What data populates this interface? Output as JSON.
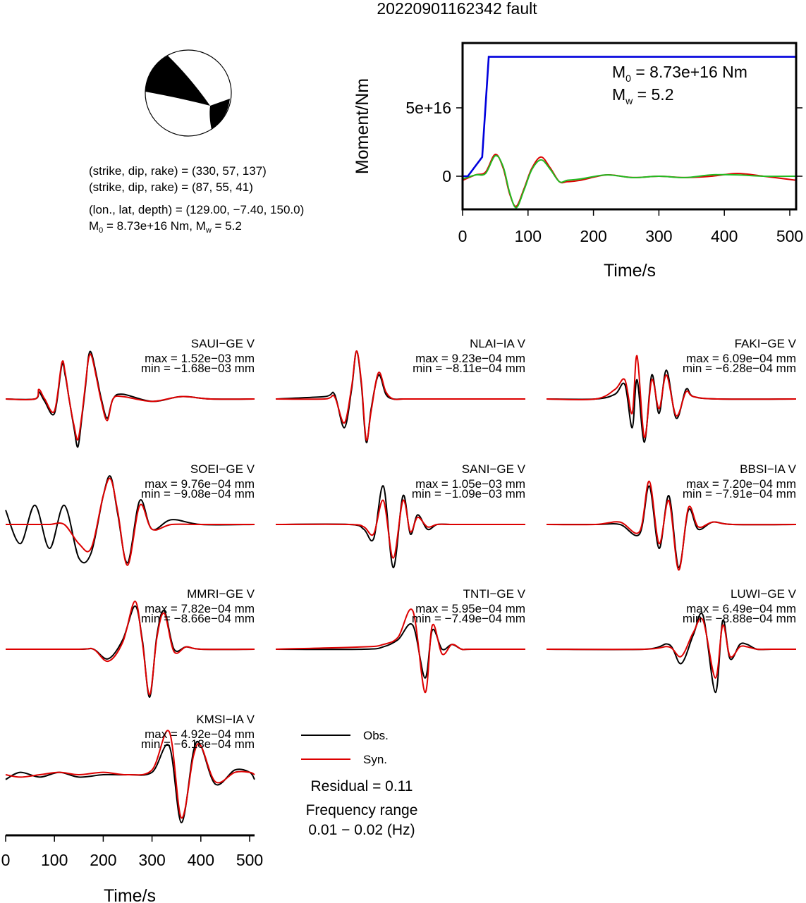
{
  "title": "20220901162342 fault",
  "beachball": {
    "plane1": "(strike, dip, rake) = (330, 57, 137)",
    "plane2": "(strike, dip, rake) = (87, 55, 41)",
    "location": "(lon., lat, depth) = (129.00, −7.40, 150.0)",
    "moment_main": "M",
    "moment_sub": "0",
    "moment_rest": " = 8.73e+16 Nm, M",
    "mag_sub": "w",
    "mag_rest": " = 5.2"
  },
  "stf": {
    "ylabel": "Moment/Nm",
    "xlabel": "Time/s",
    "m0_main": "M",
    "m0_sub": "0",
    "m0_rest": " = 8.73e+16 Nm",
    "mw_main": "M",
    "mw_sub": "w",
    "mw_rest": " = 5.2"
  },
  "waveform_xlabel": "Time/s",
  "legend": {
    "obs": "Obs.",
    "syn": "Syn."
  },
  "residual": "Residual = 0.11",
  "freq_label": "Frequency range",
  "freq_range": "0.01 − 0.02 (Hz)",
  "colors": {
    "obs": "#000000",
    "syn": "#dd0000",
    "moment": "#0000dd",
    "stf_syn": "#22bb22"
  },
  "chart_data": [
    {
      "type": "line",
      "id": "source-time-function",
      "xlabel": "Time/s",
      "ylabel": "Moment/Nm",
      "xlim": [
        0,
        510
      ],
      "ylim": [
        -2.5e+16,
        9.3e+16
      ],
      "xticks": [
        0,
        100,
        200,
        300,
        400,
        500
      ],
      "yticks": [
        0,
        5e+16
      ],
      "ytick_labels": [
        "0",
        "5e+16"
      ],
      "series": [
        {
          "color": "#0000dd",
          "x": [
            0,
            8,
            30,
            40,
            510
          ],
          "y": [
            0,
            0,
            1.4e+16,
            8.73e+16,
            8.73e+16
          ]
        },
        {
          "color": "#22bb22",
          "x": [
            0,
            20,
            35,
            50,
            62,
            72,
            82,
            94,
            106,
            120,
            134,
            148,
            160,
            180,
            220,
            260,
            300,
            340,
            380,
            420,
            460,
            510
          ],
          "y": [
            -2000000000000000.0,
            1000000000000000.0,
            2000000000000000.0,
            1.5e+16,
            7000000000000000.0,
            -1.2e+16,
            -2.3e+16,
            -1e+16,
            5000000000000000.0,
            1.2e+16,
            5000000000000000.0,
            -4000000000000000.0,
            -3000000000000000.0,
            -2000000000000000.0,
            1000000000000000.0,
            -1000000000000000.0,
            0.0,
            -1000000000000000.0,
            1000000000000000.0,
            1000000000000000.0,
            0.0,
            0.0
          ]
        },
        {
          "color": "#dd0000",
          "x": [
            0,
            20,
            35,
            50,
            62,
            72,
            82,
            94,
            106,
            120,
            134,
            148,
            160,
            180,
            220,
            260,
            300,
            340,
            380,
            420,
            460,
            510
          ],
          "y": [
            -3000000000000000.0,
            1000000000000000.0,
            3000000000000000.0,
            1.6e+16,
            6000000000000000.0,
            -1.3e+16,
            -2.2e+16,
            -9000000000000000.0,
            6000000000000000.0,
            1.4e+16,
            6000000000000000.0,
            -4000000000000000.0,
            -4000000000000000.0,
            -3000000000000000.0,
            1000000000000000.0,
            -1000000000000000.0,
            0.0,
            -1000000000000000.0,
            0.0,
            2000000000000000.0,
            0.0,
            -3000000000000000.0
          ]
        }
      ]
    },
    {
      "type": "line",
      "id": "waveform-fits",
      "xlabel": "Time/s",
      "xlim": [
        0,
        510
      ],
      "xticks": [
        0,
        100,
        200,
        300,
        400,
        500
      ],
      "stations": [
        {
          "label": "SAUI−GE V",
          "max": "max = 1.52e−03 mm",
          "min": "min = −1.68e−03 mm",
          "obs": {
            "x": [
              0,
              60,
              68,
              80,
              100,
              115,
              122,
              130,
              140,
              148,
              156,
              164,
              170,
              176,
              186,
              196,
              208,
              220,
              240,
              300,
              360,
              420,
              510
            ],
            "y": [
              0,
              0,
              0.15,
              -0.05,
              -0.3,
              0.7,
              0.5,
              0,
              -0.6,
              -1.0,
              -0.4,
              0.3,
              0.9,
              0.95,
              0.5,
              0,
              -0.4,
              0,
              0.1,
              -0.05,
              0.05,
              0,
              0
            ]
          },
          "syn": {
            "x": [
              0,
              60,
              68,
              80,
              100,
              115,
              122,
              130,
              140,
              148,
              156,
              164,
              170,
              176,
              186,
              196,
              208,
              220,
              240,
              300,
              360,
              420,
              510
            ],
            "y": [
              0,
              0,
              0.2,
              0,
              -0.25,
              0.75,
              0.55,
              0,
              -0.55,
              -0.85,
              -0.35,
              0.35,
              0.85,
              0.9,
              0.45,
              -0.05,
              -0.45,
              0,
              0.05,
              -0.05,
              0.05,
              0,
              0
            ]
          }
        },
        {
          "label": "NLAI−IA V",
          "max": "max = 9.23e−04 mm",
          "min": "min = −8.11e−04 mm",
          "obs": {
            "x": [
              0,
              100,
              120,
              140,
              155,
              165,
              175,
              185,
              195,
              210,
              225,
              240,
              260,
              300,
              510
            ],
            "y": [
              0,
              0.05,
              0.1,
              -0.6,
              0.2,
              1.0,
              0.3,
              -0.9,
              -0.2,
              0.5,
              0.1,
              0,
              0,
              0,
              0
            ]
          },
          "syn": {
            "x": [
              0,
              100,
              120,
              140,
              155,
              165,
              175,
              185,
              195,
              210,
              225,
              240,
              260,
              300,
              510
            ],
            "y": [
              0,
              0,
              0.05,
              -0.5,
              0.25,
              1.0,
              0.35,
              -0.85,
              -0.25,
              0.55,
              0.15,
              0,
              0,
              0,
              0
            ]
          }
        },
        {
          "label": "FAKI−GE V",
          "max": "max = 6.09e−04 mm",
          "min": "min = −6.28e−04 mm",
          "obs": {
            "x": [
              0,
              100,
              140,
              160,
              175,
              185,
              200,
              215,
              230,
              245,
              265,
              285,
              300,
              350,
              510
            ],
            "y": [
              0,
              0,
              0.1,
              0.3,
              -0.6,
              0.4,
              -0.9,
              0.5,
              -0.3,
              0.6,
              -0.4,
              0.2,
              0.05,
              0,
              0
            ]
          },
          "syn": {
            "x": [
              0,
              100,
              140,
              160,
              175,
              185,
              200,
              215,
              230,
              245,
              265,
              285,
              300,
              350,
              510
            ],
            "y": [
              0,
              0,
              0.2,
              0.4,
              -0.3,
              0.9,
              -0.8,
              0.4,
              -0.2,
              0.5,
              -0.35,
              0.15,
              0.05,
              0,
              0
            ]
          }
        },
        {
          "label": "SOEI−GE V",
          "max": "max = 9.76e−04 mm",
          "min": "min = −9.08e−04 mm",
          "obs": {
            "x": [
              0,
              30,
              60,
              90,
              120,
              150,
              175,
              200,
              215,
              230,
              250,
              275,
              300,
              340,
              400,
              510
            ],
            "y": [
              0.3,
              -0.4,
              0.4,
              -0.5,
              0.4,
              -0.7,
              -0.6,
              0.6,
              1.0,
              0.2,
              -0.8,
              0.5,
              -0.1,
              0.1,
              0,
              0
            ]
          },
          "syn": {
            "x": [
              0,
              30,
              60,
              90,
              120,
              150,
              175,
              200,
              215,
              230,
              250,
              275,
              300,
              340,
              400,
              510
            ],
            "y": [
              0,
              0,
              0,
              0,
              0,
              -0.4,
              -0.5,
              0.6,
              0.95,
              0.25,
              -0.85,
              0.4,
              -0.1,
              0,
              0,
              0
            ]
          }
        },
        {
          "label": "SANI−GE V",
          "max": "max = 1.05e−03 mm",
          "min": "min = −1.09e−03 mm",
          "obs": {
            "x": [
              0,
              150,
              180,
              200,
              220,
              240,
              260,
              275,
              290,
              310,
              330,
              360,
              400,
              510
            ],
            "y": [
              0,
              0,
              -0.1,
              -0.3,
              0.8,
              -0.9,
              0.6,
              -0.2,
              0.2,
              -0.1,
              0,
              0,
              0,
              0
            ]
          },
          "syn": {
            "x": [
              0,
              150,
              180,
              200,
              220,
              240,
              260,
              275,
              290,
              310,
              330,
              360,
              400,
              510
            ],
            "y": [
              0,
              0,
              -0.05,
              -0.2,
              0.5,
              -0.7,
              0.5,
              -0.15,
              0.15,
              -0.05,
              0,
              0,
              0,
              0
            ]
          }
        },
        {
          "label": "BBSI−IA V",
          "max": "max = 7.20e−04 mm",
          "min": "min = −7.91e−04 mm",
          "obs": {
            "x": [
              0,
              100,
              150,
              190,
              210,
              230,
              250,
              270,
              290,
              310,
              340,
              380,
              510
            ],
            "y": [
              0,
              0,
              0,
              -0.2,
              0.8,
              -0.5,
              0.6,
              -0.9,
              0.3,
              -0.1,
              0.05,
              0,
              0
            ]
          },
          "syn": {
            "x": [
              0,
              100,
              150,
              190,
              210,
              230,
              250,
              270,
              290,
              310,
              340,
              380,
              510
            ],
            "y": [
              0,
              0,
              0.05,
              -0.15,
              0.9,
              -0.4,
              0.5,
              -0.95,
              0.35,
              -0.05,
              0.05,
              0,
              0
            ]
          }
        },
        {
          "label": "MMRI−GE V",
          "max": "max = 7.82e−04 mm",
          "min": "min = −8.66e−04 mm",
          "obs": {
            "x": [
              0,
              150,
              180,
              210,
              240,
              265,
              280,
              295,
              310,
              325,
              345,
              370,
              400,
              510
            ],
            "y": [
              0,
              0,
              0,
              -0.2,
              0.2,
              0.9,
              0.2,
              -1.0,
              0.3,
              0.8,
              0,
              0.05,
              0,
              0
            ]
          },
          "syn": {
            "x": [
              0,
              150,
              180,
              210,
              240,
              265,
              280,
              295,
              310,
              325,
              345,
              370,
              400,
              510
            ],
            "y": [
              0,
              0,
              0,
              -0.25,
              0.15,
              1.0,
              0.15,
              -0.95,
              0.25,
              0.75,
              -0.05,
              0.05,
              0,
              0
            ]
          }
        },
        {
          "label": "TNTI−GE V",
          "max": "max = 5.95e−04 mm",
          "min": "min = −7.49e−04 mm",
          "obs": {
            "x": [
              0,
              180,
              220,
              250,
              280,
              305,
              320,
              340,
              360,
              380,
              400,
              510
            ],
            "y": [
              0,
              0,
              0.05,
              0.2,
              0.5,
              -0.6,
              0.4,
              0,
              0.1,
              0,
              0,
              0
            ]
          },
          "syn": {
            "x": [
              0,
              180,
              220,
              250,
              280,
              305,
              320,
              340,
              360,
              380,
              400,
              510
            ],
            "y": [
              0,
              0.05,
              0.1,
              0.25,
              0.8,
              -0.9,
              0.5,
              -0.1,
              0.1,
              0,
              0,
              0
            ]
          }
        },
        {
          "label": "LUWI−GE V",
          "max": "max = 6.49e−04 mm",
          "min": "min = −8.88e−04 mm",
          "obs": {
            "x": [
              0,
              200,
              250,
              275,
              300,
              320,
              345,
              360,
              375,
              395,
              410,
              430,
              460,
              510
            ],
            "y": [
              0,
              0,
              0.1,
              -0.3,
              0.3,
              0.7,
              -0.9,
              0.6,
              -0.2,
              0.1,
              0.1,
              0,
              0,
              0
            ]
          },
          "syn": {
            "x": [
              0,
              200,
              250,
              275,
              300,
              320,
              345,
              360,
              375,
              395,
              410,
              430,
              460,
              510
            ],
            "y": [
              0,
              0,
              0.05,
              -0.15,
              0.35,
              0.6,
              -0.6,
              0.5,
              -0.15,
              0.05,
              0.05,
              0,
              0,
              0
            ]
          }
        },
        {
          "label": "KMSI−IA V",
          "max": "max = 4.92e−04 mm",
          "min": "min = −6.18e−04 mm",
          "obs": {
            "x": [
              0,
              30,
              70,
              110,
              150,
              200,
              250,
              300,
              335,
              360,
              385,
              400,
              430,
              470,
              500,
              510
            ],
            "y": [
              -0.1,
              0.05,
              -0.05,
              0.05,
              -0.05,
              0,
              0,
              0.05,
              0.6,
              -1.0,
              0.5,
              0.6,
              -0.2,
              0.1,
              0.05,
              -0.1
            ]
          },
          "syn": {
            "x": [
              0,
              30,
              70,
              110,
              150,
              200,
              250,
              300,
              335,
              360,
              385,
              400,
              430,
              470,
              500,
              510
            ],
            "y": [
              0,
              -0.05,
              0,
              0.05,
              0,
              0.05,
              0,
              0.1,
              0.9,
              -0.9,
              0.4,
              0.6,
              -0.15,
              0.05,
              0.05,
              0
            ]
          }
        }
      ]
    }
  ]
}
